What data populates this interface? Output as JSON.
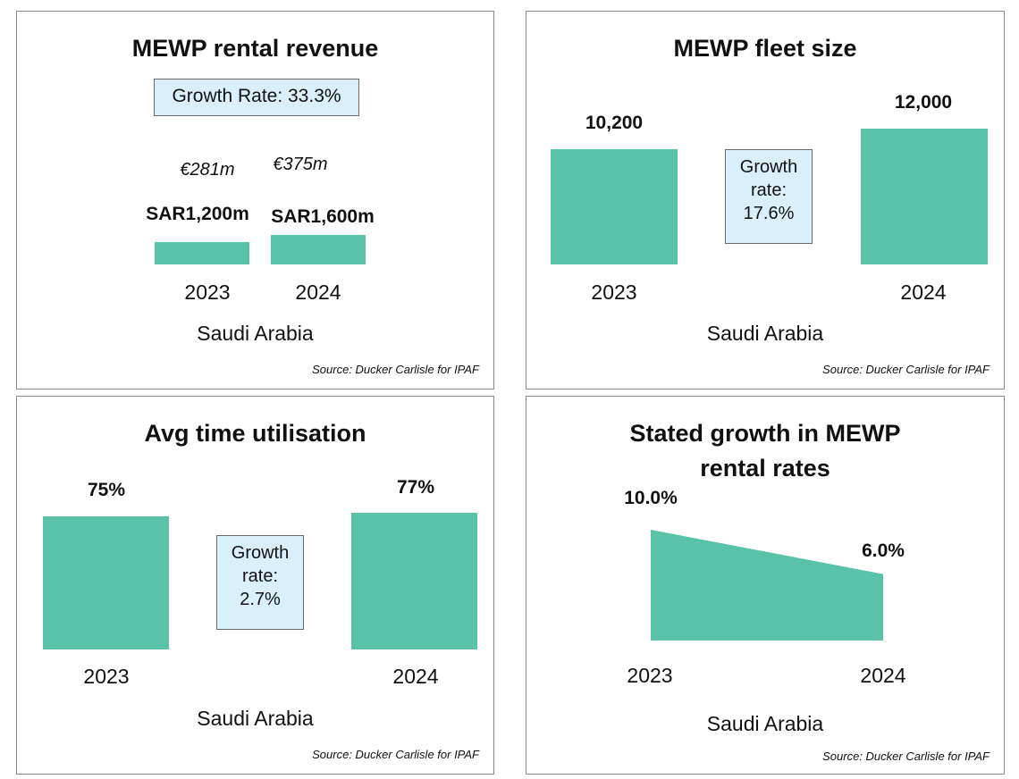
{
  "source": "Source:  Ducker Carlisle  for IPAF",
  "region": "Saudi Arabia",
  "bar_color": "#5bc2aa",
  "growth_box_color": "#d9f0fa",
  "chart_data": [
    {
      "type": "bar",
      "title": "MEWP rental revenue",
      "categories": [
        "2023",
        "2024"
      ],
      "values": [
        1200,
        1600
      ],
      "value_labels": [
        "SAR1,200m",
        "SAR1,600m"
      ],
      "secondary_labels": [
        "€281m",
        "€375m"
      ],
      "annotation": "Growth Rate: 33.3%",
      "xlabel": "Saudi Arabia"
    },
    {
      "type": "bar",
      "title": "MEWP fleet size",
      "categories": [
        "2023",
        "2024"
      ],
      "values": [
        10200,
        12000
      ],
      "value_labels": [
        "10,200",
        "12,000"
      ],
      "annotation": [
        "Growth",
        "rate:",
        "17.6%"
      ],
      "xlabel": "Saudi Arabia"
    },
    {
      "type": "bar",
      "title": "Avg time utilisation",
      "categories": [
        "2023",
        "2024"
      ],
      "values": [
        75,
        77
      ],
      "value_labels": [
        "75%",
        "77%"
      ],
      "annotation": [
        "Growth",
        "rate:",
        "2.7%"
      ],
      "xlabel": "Saudi Arabia"
    },
    {
      "type": "area",
      "title": [
        "Stated growth in MEWP",
        "rental rates"
      ],
      "categories": [
        "2023",
        "2024"
      ],
      "values": [
        10.0,
        6.0
      ],
      "value_labels": [
        "10.0%",
        "6.0%"
      ],
      "xlabel": "Saudi Arabia"
    }
  ]
}
